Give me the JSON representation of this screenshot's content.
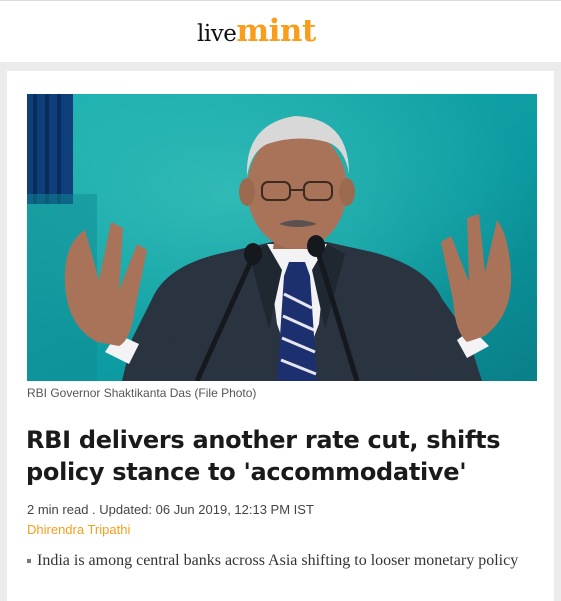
{
  "header": {
    "logo_part1": "live",
    "logo_part2": "mint",
    "logo_accent_color": "#f99d1c"
  },
  "article": {
    "image_alt": "RBI Governor Shaktikanta Das (File Photo)",
    "image_caption": "RBI Governor Shaktikanta Das (File Photo)",
    "headline": "RBI delivers another rate cut, shifts policy stance to 'accommodative'",
    "meta": "2 min read . Updated: 06 Jun 2019, 12:13 PM IST",
    "author": "Dhirendra Tripathi",
    "summary": [
      "India is among central banks across Asia shifting to looser monetary policy"
    ]
  }
}
